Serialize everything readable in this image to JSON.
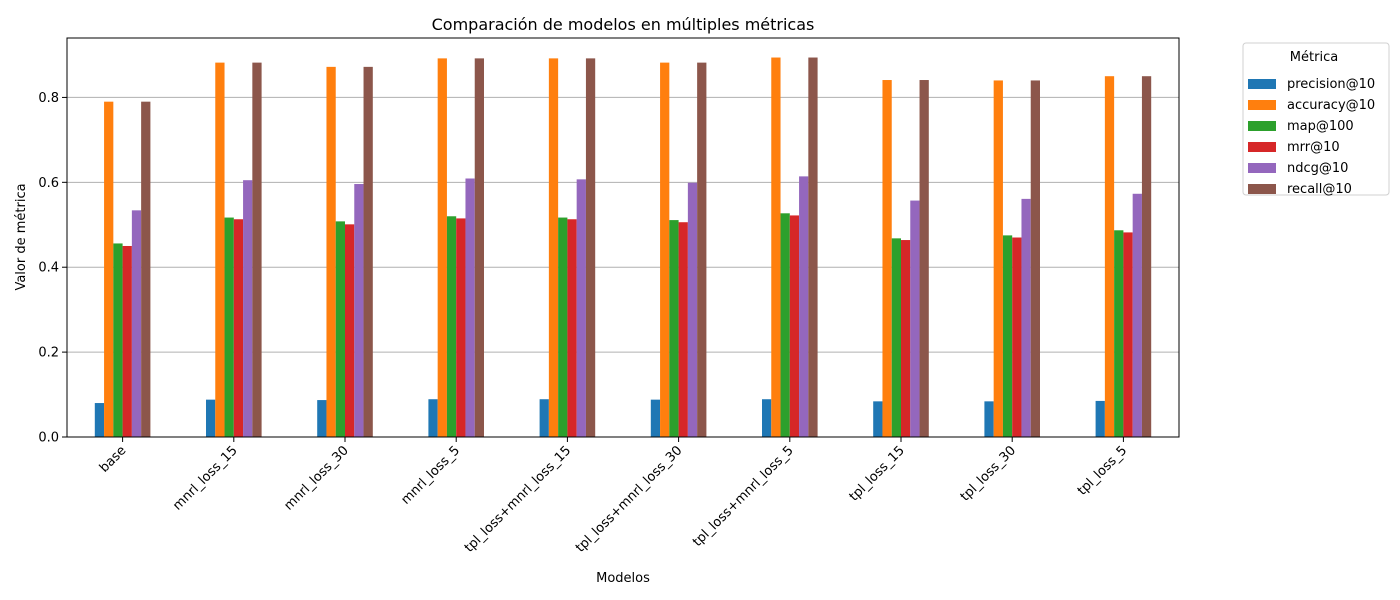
{
  "chart_data": {
    "type": "bar",
    "title": "Comparación de modelos en múltiples métricas",
    "xlabel": "Modelos",
    "ylabel": "Valor de métrica",
    "ylim": [
      0,
      0.94
    ],
    "yticks": [
      0.0,
      0.2,
      0.4,
      0.6,
      0.8
    ],
    "grid": "horizontal",
    "legend_title": "Métrica",
    "legend_placement": "outside-top-right",
    "categories": [
      "base",
      "mnrl_loss_15",
      "mnrl_loss_30",
      "mnrl_loss_5",
      "tpl_loss+mnrl_loss_15",
      "tpl_loss+mnrl_loss_30",
      "tpl_loss+mnrl_loss_5",
      "tpl_loss_15",
      "tpl_loss_30",
      "tpl_loss_5"
    ],
    "series": [
      {
        "name": "precision@10",
        "color": "#1f77b4",
        "values": [
          0.08,
          0.088,
          0.087,
          0.089,
          0.089,
          0.088,
          0.089,
          0.084,
          0.084,
          0.085
        ]
      },
      {
        "name": "accuracy@10",
        "color": "#ff7f0e",
        "values": [
          0.79,
          0.882,
          0.872,
          0.892,
          0.892,
          0.882,
          0.894,
          0.841,
          0.84,
          0.85
        ]
      },
      {
        "name": "map@100",
        "color": "#2ca02c",
        "values": [
          0.456,
          0.517,
          0.508,
          0.52,
          0.517,
          0.511,
          0.527,
          0.468,
          0.475,
          0.487
        ]
      },
      {
        "name": "mrr@10",
        "color": "#d62728",
        "values": [
          0.45,
          0.513,
          0.501,
          0.515,
          0.513,
          0.506,
          0.522,
          0.464,
          0.47,
          0.482
        ]
      },
      {
        "name": "ndcg@10",
        "color": "#9467bd",
        "values": [
          0.534,
          0.605,
          0.596,
          0.609,
          0.607,
          0.599,
          0.614,
          0.557,
          0.561,
          0.573
        ]
      },
      {
        "name": "recall@10",
        "color": "#8c564b",
        "values": [
          0.79,
          0.882,
          0.872,
          0.892,
          0.892,
          0.882,
          0.894,
          0.841,
          0.84,
          0.85
        ]
      }
    ]
  }
}
